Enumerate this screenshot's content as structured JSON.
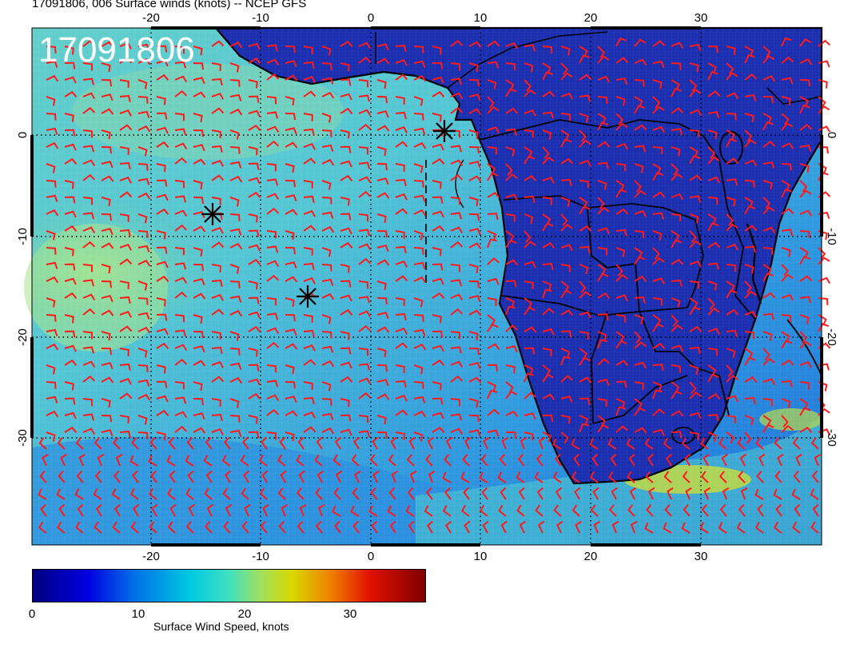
{
  "title": "17091806, 006 Surface winds (knots) -- NCEP GFS",
  "timestamp_label": "17091806",
  "map": {
    "x_ticks": [
      "-20",
      "-10",
      "0",
      "10",
      "20",
      "30"
    ],
    "y_ticks": [
      "0",
      "-10",
      "-20",
      "-30"
    ],
    "marker_icon": "asterisk-marker",
    "barb_color": "#ff1a1a",
    "land_color": "#1a2ea8",
    "ocean_colors": [
      "#2a8be0",
      "#4fc0d8",
      "#7fd8c0",
      "#9be0a0"
    ]
  },
  "colorbar": {
    "ticks": [
      "0",
      "10",
      "20",
      "30"
    ],
    "label": "Surface Wind Speed, knots",
    "range": [
      0,
      37
    ]
  }
}
